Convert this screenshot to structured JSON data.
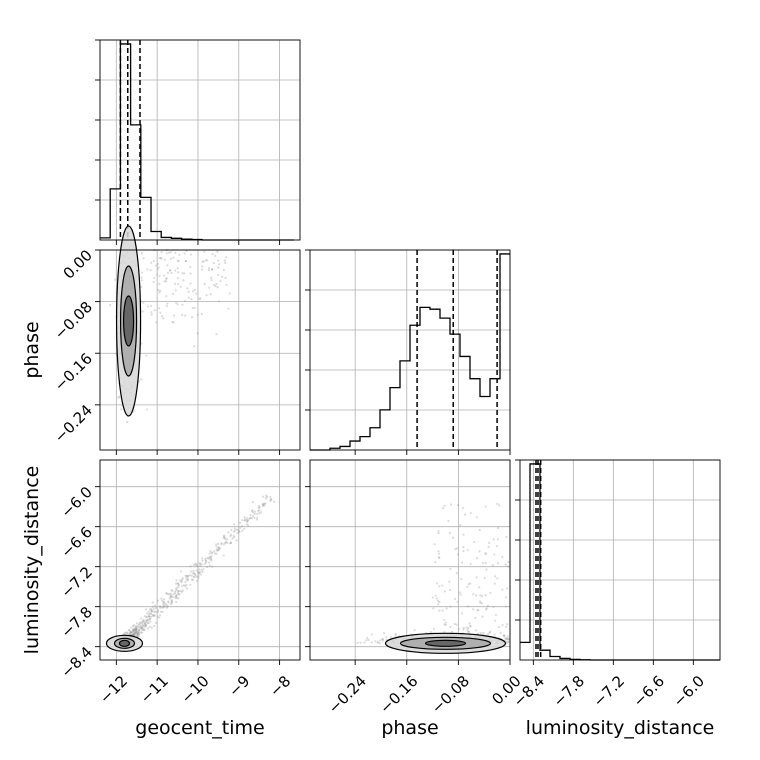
{
  "chart_data": {
    "type": "corner",
    "parameters": [
      "geocent_time",
      "phase",
      "luminosity_distance"
    ],
    "grid": true,
    "ranges": {
      "geocent_time": [
        -12.4,
        -7.5
      ],
      "phase": [
        -0.31,
        0.0
      ],
      "luminosity_distance": [
        -8.6,
        -5.6
      ]
    },
    "ticks": {
      "geocent_time": [
        "-12",
        "-11",
        "-10",
        "-9",
        "-8"
      ],
      "phase": [
        "-0.24",
        "-0.16",
        "-0.08",
        "0.00"
      ],
      "luminosity_distance": [
        "-8.4",
        "-7.8",
        "-7.2",
        "-6.6",
        "-6.0"
      ]
    },
    "marginals": {
      "geocent_time": {
        "bin_edges": [
          -12.4,
          -12.15,
          -11.9,
          -11.65,
          -11.4,
          -11.15,
          -10.9,
          -10.65,
          -10.4,
          -10.15,
          -9.9,
          -9.65,
          -9.4,
          -9.15,
          -8.9,
          -8.65,
          -8.4,
          -8.15,
          -7.9,
          -7.65
        ],
        "counts": [
          5,
          120,
          460,
          270,
          100,
          20,
          6,
          4,
          2,
          1,
          0,
          0,
          0,
          0,
          0,
          0,
          0,
          0,
          0
        ],
        "quantiles": [
          -11.9,
          -11.72,
          -11.42
        ]
      },
      "phase": {
        "bin_edges": [
          -0.31,
          -0.2945,
          -0.279,
          -0.2635,
          -0.248,
          -0.2325,
          -0.217,
          -0.2015,
          -0.186,
          -0.1705,
          -0.155,
          -0.1395,
          -0.124,
          -0.1085,
          -0.093,
          -0.0775,
          -0.062,
          -0.0465,
          -0.031,
          -0.0155,
          0.0
        ],
        "counts": [
          0,
          0,
          2,
          4,
          10,
          15,
          25,
          45,
          70,
          100,
          140,
          160,
          158,
          148,
          130,
          105,
          80,
          60,
          80,
          220
        ],
        "quantiles": [
          -0.144,
          -0.088,
          -0.02
        ]
      },
      "luminosity_distance": {
        "bin_edges": [
          -8.6,
          -8.45,
          -8.3,
          -8.15,
          -8.0,
          -7.85,
          -7.7,
          -7.55,
          -7.4,
          -7.25,
          -7.1,
          -6.95,
          -6.8,
          -6.65,
          -6.5,
          -6.35,
          -6.2,
          -6.05,
          -5.9,
          -5.75,
          -5.6
        ],
        "counts": [
          90,
          1000,
          50,
          18,
          8,
          3,
          1,
          0,
          0,
          0,
          0,
          0,
          0,
          0,
          0,
          0,
          0,
          0,
          0,
          0
        ],
        "quantiles": [
          -8.36,
          -8.33,
          -8.29
        ]
      }
    },
    "pairs": [
      {
        "x": "geocent_time",
        "y": "phase",
        "density_peak": [
          -11.7,
          -0.11
        ],
        "contour_levels": 3
      },
      {
        "x": "geocent_time",
        "y": "luminosity_distance",
        "density_peak": [
          -11.8,
          -8.35
        ],
        "contour_levels": 3
      },
      {
        "x": "phase",
        "y": "luminosity_distance",
        "density_peak": [
          -0.1,
          -8.35
        ],
        "contour_levels": 3
      }
    ]
  },
  "labels": {
    "geocent_time": "geocent_time",
    "phase": "phase",
    "luminosity_distance": "luminosity_distance"
  }
}
